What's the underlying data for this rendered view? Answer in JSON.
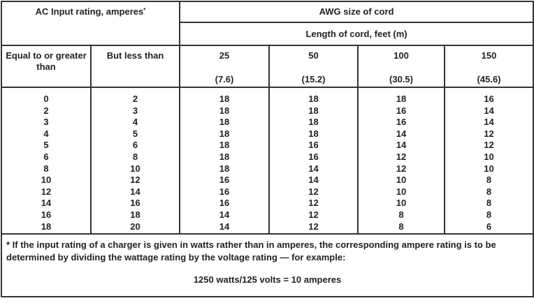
{
  "header": {
    "input_rating": "AC Input rating, amperes",
    "input_rating_mark": "*",
    "awg": "AWG size of cord",
    "length": "Length of cord, feet (m)",
    "col_min": "Equal to or greater than",
    "col_max": "But less than",
    "lengths": [
      {
        "feet": "25",
        "m": "(7.6)"
      },
      {
        "feet": "50",
        "m": "(15.2)"
      },
      {
        "feet": "100",
        "m": "(30.5)"
      },
      {
        "feet": "150",
        "m": "(45.6)"
      }
    ]
  },
  "columns": {
    "min": [
      "0",
      "2",
      "3",
      "4",
      "5",
      "6",
      "8",
      "10",
      "12",
      "14",
      "16",
      "18"
    ],
    "max": [
      "2",
      "3",
      "4",
      "5",
      "6",
      "8",
      "10",
      "12",
      "14",
      "16",
      "18",
      "20"
    ],
    "ft25": [
      "18",
      "18",
      "18",
      "18",
      "18",
      "18",
      "18",
      "16",
      "16",
      "16",
      "14",
      "14"
    ],
    "ft50": [
      "18",
      "18",
      "18",
      "18",
      "16",
      "16",
      "14",
      "14",
      "12",
      "12",
      "12",
      "12"
    ],
    "ft100": [
      "18",
      "16",
      "16",
      "14",
      "14",
      "12",
      "12",
      "10",
      "10",
      "10",
      "8",
      "8"
    ],
    "ft150": [
      "16",
      "14",
      "14",
      "12",
      "12",
      "10",
      "10",
      "8",
      "8",
      "8",
      "8",
      "6"
    ]
  },
  "footnote": {
    "text": "* If the input rating of a charger is given in watts rather than in amperes, the corresponding ampere rating is to be determined by dividing the wattage rating by the voltage rating — for example:",
    "formula": "1250 watts/125 volts = 10 amperes"
  }
}
